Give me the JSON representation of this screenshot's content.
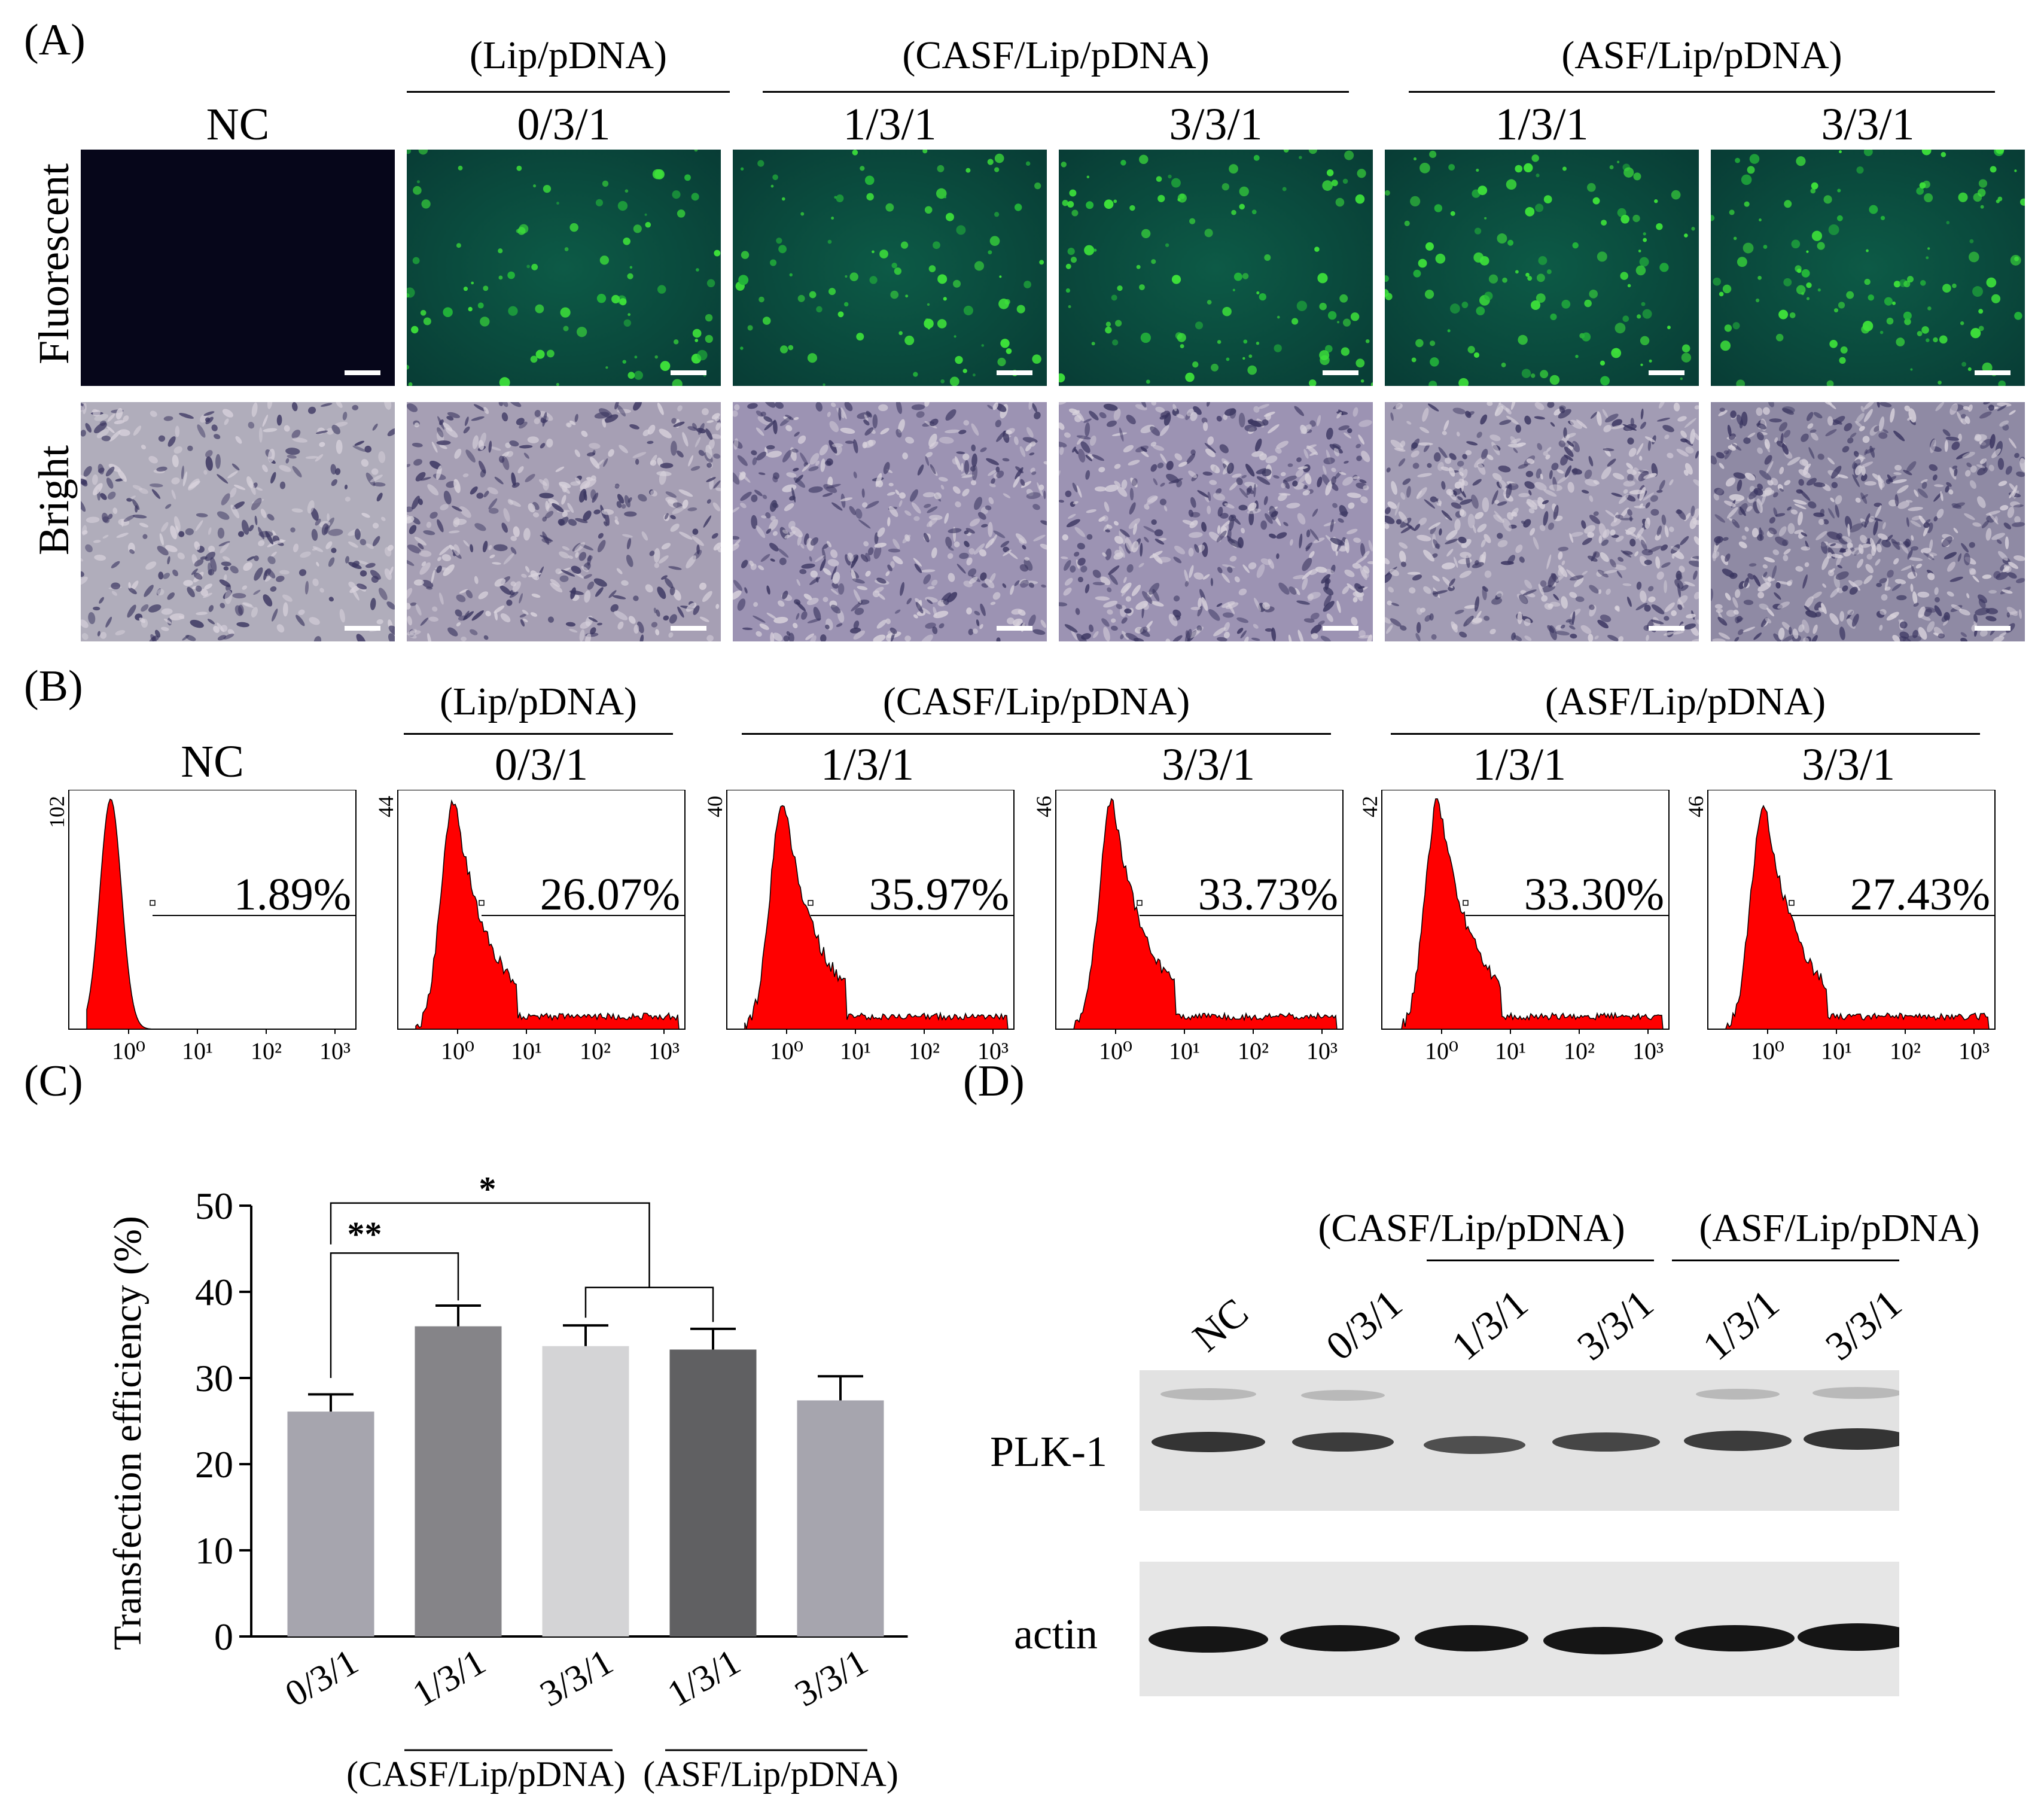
{
  "panel_a": {
    "letter": "(A)",
    "group_labels": [
      "(Lip/pDNA)",
      "(CASF/Lip/pDNA)",
      "(ASF/Lip/pDNA)"
    ],
    "columns": [
      "NC",
      "0/3/1",
      "1/3/1",
      "3/3/1",
      "1/3/1",
      "3/3/1"
    ],
    "row_labels": [
      "Fluorescent",
      "Bright"
    ]
  },
  "panel_b": {
    "letter": "(B)",
    "group_labels": [
      "(Lip/pDNA)",
      "(CASF/Lip/pDNA)",
      "(ASF/Lip/pDNA)"
    ],
    "columns": [
      "NC",
      "0/3/1",
      "1/3/1",
      "3/3/1",
      "1/3/1",
      "3/3/1"
    ],
    "percentages": [
      "1.89%",
      "26.07%",
      "35.97%",
      "33.73%",
      "33.30%",
      "27.43%"
    ],
    "y_max_labels": [
      "102",
      "44",
      "40",
      "46",
      "42",
      "46"
    ],
    "x_ticks": [
      "10⁰",
      "10¹",
      "10²",
      "10³"
    ]
  },
  "panel_c": {
    "letter": "(C)",
    "group_labels": [
      "(CASF/Lip/pDNA)",
      "(ASF/Lip/pDNA)"
    ],
    "significance": [
      "**",
      "*"
    ]
  },
  "panel_d": {
    "letter": "(D)",
    "group_labels": [
      "(CASF/Lip/pDNA)",
      "(ASF/Lip/pDNA)"
    ],
    "lanes": [
      "NC",
      "0/3/1",
      "1/3/1",
      "3/3/1",
      "1/3/1",
      "3/3/1"
    ],
    "rows": [
      "PLK-1",
      "actin"
    ]
  },
  "chart_data": {
    "type": "bar",
    "categories": [
      "0/3/1",
      "1/3/1",
      "3/3/1",
      "1/3/1",
      "3/3/1"
    ],
    "values": [
      26.1,
      36.0,
      33.7,
      33.3,
      27.4
    ],
    "errors": [
      2.0,
      2.4,
      2.4,
      2.4,
      2.8
    ],
    "colors": [
      "#a6a5ae",
      "#858488",
      "#d4d4d6",
      "#606062",
      "#a6a5ae"
    ],
    "ylabel": "Transfection efficiency (%)",
    "ylim": [
      0,
      50
    ],
    "yticks": [
      "0",
      "10",
      "20",
      "30",
      "40",
      "50"
    ]
  }
}
